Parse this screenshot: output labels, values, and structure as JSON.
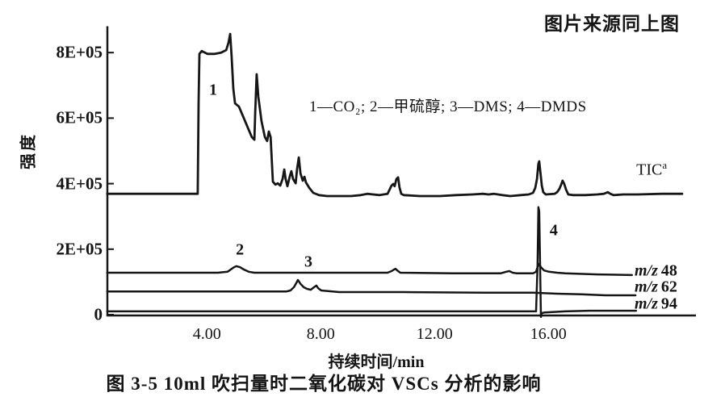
{
  "page": {
    "background": "#ffffff",
    "ink": "#161616"
  },
  "source_note": "图片来源同上图",
  "figure": {
    "caption": "图 3-5  10ml 吹扫量时二氧化碳对 VSCs 分析的影响",
    "legend": "1—CO₂; 2—甲硫醇; 3—DMS; 4—DMDS"
  },
  "chart_data": {
    "type": "line",
    "title": "图 3-5 10ml吹扫量时二氧化碳对VSCs分析的影响",
    "xlabel": "持续时间/min",
    "ylabel": "强度",
    "grid": false,
    "legend_position": "upper middle, text line",
    "xlim": [
      0.5,
      21.2
    ],
    "ylim": [
      0,
      880000
    ],
    "intensity_note": "series point values are intensity in units of 1E+05",
    "x_ticks": [
      {
        "t": 4,
        "label": "4.00"
      },
      {
        "t": 8,
        "label": "8.00"
      },
      {
        "t": 12,
        "label": "12.00"
      },
      {
        "t": 16,
        "label": "16.00"
      }
    ],
    "y_ticks": [
      {
        "value": 800000,
        "i": 8,
        "label": "8E+05"
      },
      {
        "value": 600000,
        "i": 6,
        "label": "6E+05"
      },
      {
        "value": 400000,
        "i": 4,
        "label": "4E+05"
      },
      {
        "value": 200000,
        "i": 2,
        "label": "2E+05"
      },
      {
        "value": 0,
        "i": 0,
        "label": "0"
      }
    ],
    "annotations": [
      {
        "text": "1",
        "compound": "CO₂",
        "t": 4.22,
        "i": 6.85
      },
      {
        "text": "2",
        "compound": "甲硫醇",
        "t": 5.16,
        "i": 1.97
      },
      {
        "text": "3",
        "compound": "DMS",
        "t": 7.57,
        "i": 1.6
      },
      {
        "text": "4",
        "compound": "DMDS",
        "t": 16.19,
        "i": 2.56
      }
    ],
    "series": [
      {
        "name": "TIC",
        "label": "TIC",
        "label_sup": "a",
        "label_italic": false,
        "label_pos": {
          "t": 19.09,
          "i": 4.41
        },
        "stroke_width": 2.8,
        "points": [
          [
            0.5,
            3.69
          ],
          [
            3.63,
            3.69
          ],
          [
            3.68,
            3.69
          ],
          [
            3.71,
            6.5
          ],
          [
            3.74,
            7.96
          ],
          [
            3.82,
            8.05
          ],
          [
            4.02,
            7.96
          ],
          [
            4.28,
            7.96
          ],
          [
            4.5,
            8.0
          ],
          [
            4.68,
            8.08
          ],
          [
            4.76,
            8.3
          ],
          [
            4.82,
            8.57
          ],
          [
            4.87,
            7.88
          ],
          [
            4.93,
            6.9
          ],
          [
            4.99,
            6.45
          ],
          [
            5.13,
            6.35
          ],
          [
            5.58,
            5.42
          ],
          [
            5.67,
            5.34
          ],
          [
            5.7,
            6.16
          ],
          [
            5.75,
            7.34
          ],
          [
            5.81,
            6.65
          ],
          [
            5.92,
            5.91
          ],
          [
            6.04,
            5.42
          ],
          [
            6.12,
            5.3
          ],
          [
            6.18,
            5.59
          ],
          [
            6.24,
            5.42
          ],
          [
            6.32,
            4.06
          ],
          [
            6.41,
            3.97
          ],
          [
            6.49,
            4.01
          ],
          [
            6.58,
            3.94
          ],
          [
            6.66,
            4.14
          ],
          [
            6.72,
            4.43
          ],
          [
            6.77,
            4.14
          ],
          [
            6.83,
            3.92
          ],
          [
            6.92,
            4.24
          ],
          [
            6.97,
            4.38
          ],
          [
            7.03,
            4.14
          ],
          [
            7.12,
            4.01
          ],
          [
            7.17,
            4.43
          ],
          [
            7.23,
            4.8
          ],
          [
            7.29,
            4.31
          ],
          [
            7.37,
            4.09
          ],
          [
            7.43,
            4.21
          ],
          [
            7.48,
            4.04
          ],
          [
            7.6,
            3.87
          ],
          [
            7.74,
            3.72
          ],
          [
            7.94,
            3.65
          ],
          [
            8.22,
            3.62
          ],
          [
            9.07,
            3.62
          ],
          [
            9.41,
            3.65
          ],
          [
            9.64,
            3.69
          ],
          [
            9.84,
            3.67
          ],
          [
            10.07,
            3.65
          ],
          [
            10.35,
            3.69
          ],
          [
            10.49,
            3.94
          ],
          [
            10.55,
            3.99
          ],
          [
            10.6,
            3.92
          ],
          [
            10.66,
            4.14
          ],
          [
            10.72,
            4.19
          ],
          [
            10.77,
            3.89
          ],
          [
            10.83,
            3.69
          ],
          [
            10.92,
            3.65
          ],
          [
            11.48,
            3.62
          ],
          [
            12.19,
            3.62
          ],
          [
            12.76,
            3.65
          ],
          [
            13.33,
            3.67
          ],
          [
            13.7,
            3.69
          ],
          [
            13.9,
            3.67
          ],
          [
            14.09,
            3.69
          ],
          [
            14.38,
            3.65
          ],
          [
            14.66,
            3.62
          ],
          [
            15.03,
            3.65
          ],
          [
            15.31,
            3.67
          ],
          [
            15.46,
            3.72
          ],
          [
            15.54,
            3.87
          ],
          [
            15.6,
            4.14
          ],
          [
            15.65,
            4.61
          ],
          [
            15.68,
            4.68
          ],
          [
            15.71,
            4.43
          ],
          [
            15.77,
            3.94
          ],
          [
            15.82,
            3.74
          ],
          [
            15.91,
            3.67
          ],
          [
            16.22,
            3.69
          ],
          [
            16.31,
            3.74
          ],
          [
            16.39,
            3.84
          ],
          [
            16.45,
            3.97
          ],
          [
            16.5,
            4.09
          ],
          [
            16.56,
            3.99
          ],
          [
            16.62,
            3.82
          ],
          [
            16.7,
            3.67
          ],
          [
            16.87,
            3.65
          ],
          [
            17.3,
            3.65
          ],
          [
            17.72,
            3.67
          ],
          [
            17.95,
            3.69
          ],
          [
            18.09,
            3.74
          ],
          [
            18.18,
            3.69
          ],
          [
            18.29,
            3.65
          ],
          [
            18.63,
            3.67
          ],
          [
            19.14,
            3.67
          ],
          [
            19.99,
            3.69
          ],
          [
            20.7,
            3.69
          ]
        ]
      },
      {
        "name": "m/z 48",
        "label": "m/z",
        "label_num": "48",
        "label_italic": true,
        "label_pos": {
          "t": 19.03,
          "i": 1.33
        },
        "stroke_width": 2.5,
        "points": [
          [
            0.5,
            1.28
          ],
          [
            4.39,
            1.28
          ],
          [
            4.73,
            1.31
          ],
          [
            4.84,
            1.38
          ],
          [
            4.96,
            1.45
          ],
          [
            5.04,
            1.48
          ],
          [
            5.16,
            1.45
          ],
          [
            5.3,
            1.38
          ],
          [
            5.47,
            1.31
          ],
          [
            5.67,
            1.28
          ],
          [
            8.65,
            1.28
          ],
          [
            10.35,
            1.28
          ],
          [
            10.49,
            1.33
          ],
          [
            10.58,
            1.38
          ],
          [
            10.63,
            1.4
          ],
          [
            10.72,
            1.33
          ],
          [
            10.8,
            1.28
          ],
          [
            12.62,
            1.26
          ],
          [
            14.32,
            1.26
          ],
          [
            14.52,
            1.31
          ],
          [
            14.63,
            1.33
          ],
          [
            14.75,
            1.28
          ],
          [
            14.89,
            1.26
          ],
          [
            15.46,
            1.26
          ],
          [
            15.57,
            1.31
          ],
          [
            15.62,
            1.45
          ],
          [
            15.68,
            1.55
          ],
          [
            15.74,
            1.45
          ],
          [
            15.85,
            1.35
          ],
          [
            16.02,
            1.31
          ],
          [
            16.31,
            1.28
          ],
          [
            16.59,
            1.26
          ],
          [
            17.72,
            1.23
          ],
          [
            18.94,
            1.21
          ]
        ]
      },
      {
        "name": "m/z 62",
        "label": "m/z",
        "label_num": "62",
        "label_italic": true,
        "label_pos": {
          "t": 19.03,
          "i": 0.84
        },
        "stroke_width": 2.5,
        "points": [
          [
            0.5,
            0.71
          ],
          [
            2.41,
            0.71
          ],
          [
            5.24,
            0.71
          ],
          [
            6.8,
            0.71
          ],
          [
            6.94,
            0.74
          ],
          [
            7.06,
            0.84
          ],
          [
            7.14,
            0.96
          ],
          [
            7.2,
            1.06
          ],
          [
            7.29,
            0.94
          ],
          [
            7.4,
            0.84
          ],
          [
            7.51,
            0.79
          ],
          [
            7.65,
            0.76
          ],
          [
            7.77,
            0.84
          ],
          [
            7.85,
            0.89
          ],
          [
            7.91,
            0.81
          ],
          [
            8.02,
            0.74
          ],
          [
            8.65,
            0.69
          ],
          [
            10.92,
            0.69
          ],
          [
            13.75,
            0.67
          ],
          [
            15.46,
            0.67
          ],
          [
            16.31,
            0.64
          ],
          [
            17.16,
            0.62
          ],
          [
            18.01,
            0.59
          ],
          [
            19.06,
            0.59
          ]
        ]
      },
      {
        "name": "m/z 94",
        "label": "m/z",
        "label_num": "94",
        "label_italic": true,
        "label_pos": {
          "t": 19.03,
          "i": 0.32
        },
        "stroke_width": 2.5,
        "points": [
          [
            0.5,
            0.1
          ],
          [
            5.24,
            0.1
          ],
          [
            10.92,
            0.1
          ],
          [
            14.89,
            0.1
          ],
          [
            15.46,
            0.1
          ],
          [
            15.57,
            0.1
          ],
          [
            15.62,
            1.48
          ],
          [
            15.65,
            3.28
          ],
          [
            15.68,
            3.15
          ],
          [
            15.71,
            1.48
          ],
          [
            15.74,
            -0.07
          ],
          [
            15.77,
            0.05
          ],
          [
            15.88,
            0.07
          ],
          [
            16.59,
            0.1
          ],
          [
            17.44,
            0.12
          ],
          [
            18.29,
            0.12
          ],
          [
            19.08,
            0.12
          ]
        ]
      }
    ]
  }
}
